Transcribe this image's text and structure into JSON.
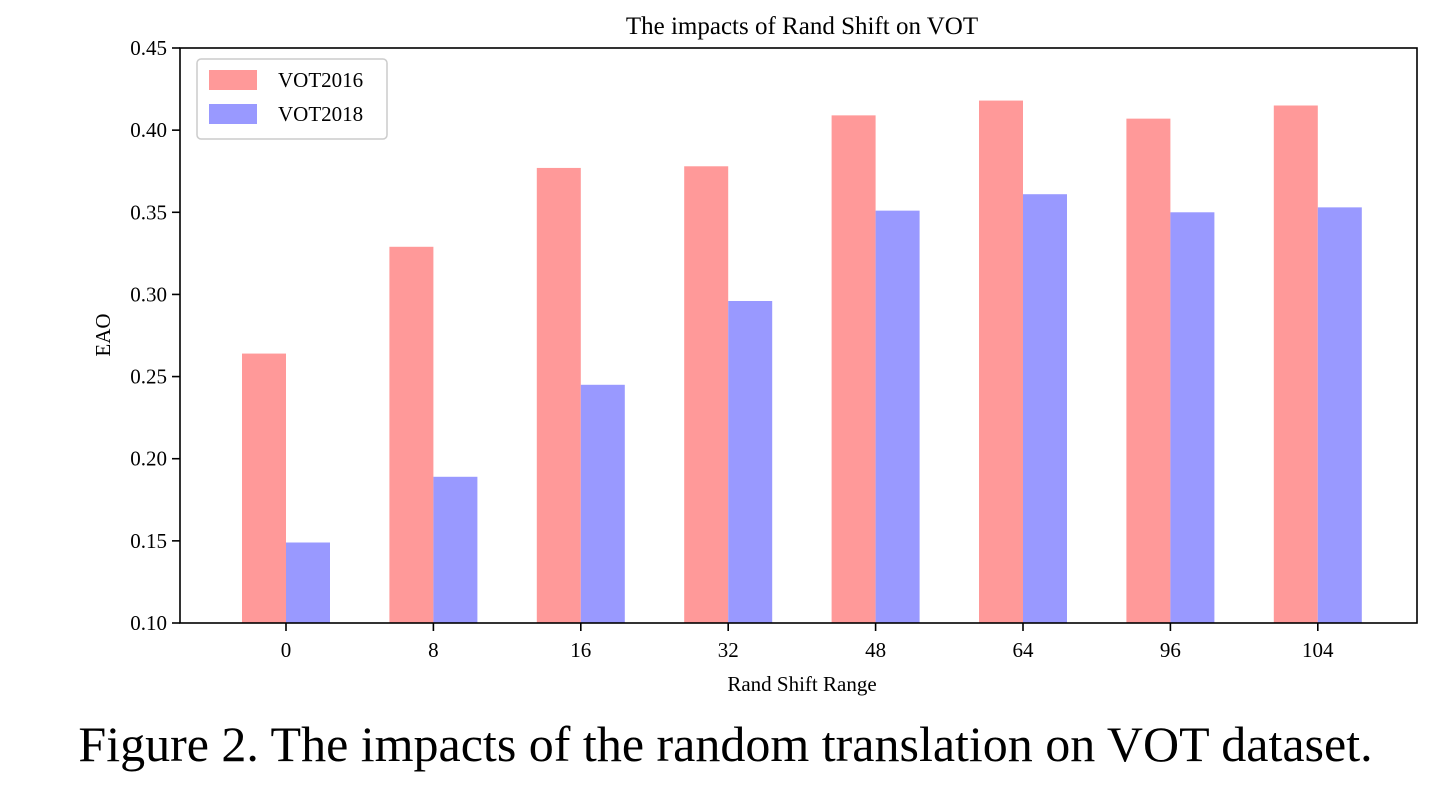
{
  "chart_data": {
    "type": "bar",
    "title": "The impacts of Rand Shift on VOT",
    "xlabel": "Rand Shift Range",
    "ylabel": "EAO",
    "categories": [
      "0",
      "8",
      "16",
      "32",
      "48",
      "64",
      "96",
      "104"
    ],
    "ylim": [
      0.1,
      0.45
    ],
    "yticks": [
      "0.10",
      "0.15",
      "0.20",
      "0.25",
      "0.30",
      "0.35",
      "0.40",
      "0.45"
    ],
    "grid": false,
    "legend_position": "top-left",
    "series": [
      {
        "name": "VOT2016",
        "color": "#ff9999",
        "values": [
          0.264,
          0.329,
          0.377,
          0.378,
          0.409,
          0.418,
          0.407,
          0.415
        ]
      },
      {
        "name": "VOT2018",
        "color": "#9999ff",
        "values": [
          0.149,
          0.189,
          0.245,
          0.296,
          0.351,
          0.361,
          0.35,
          0.353
        ]
      }
    ]
  },
  "caption": "Figure 2. The impacts of the random translation on VOT dataset."
}
